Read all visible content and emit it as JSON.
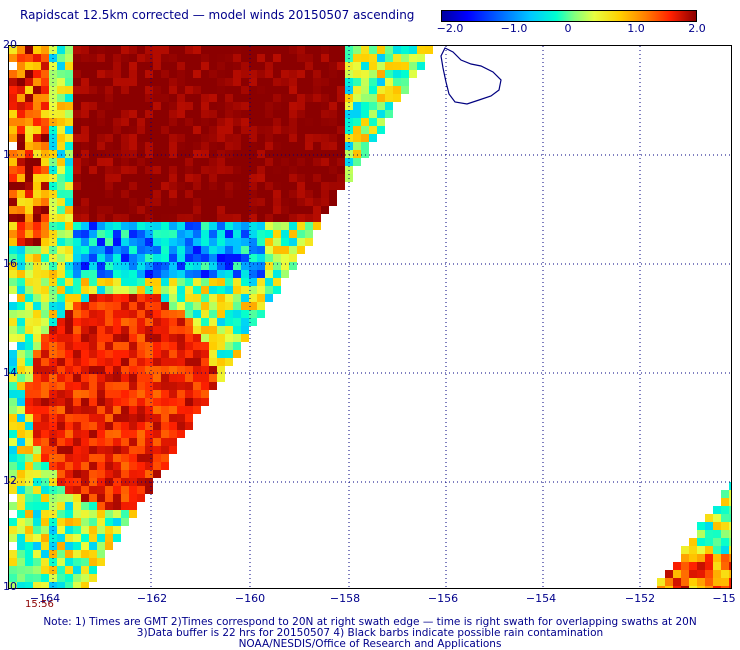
{
  "title": "Rapidscat 12.5km corrected — model winds 20150507 ascending",
  "colorbar": {
    "labels": [
      "−2.0",
      "−1.0",
      "0",
      "1.0",
      "2.0"
    ],
    "values": [
      -2.0,
      -1.0,
      0,
      1.0,
      2.0
    ],
    "min": -2.0,
    "max": 2.0,
    "colors": [
      "#0000a0",
      "#0000ff",
      "#00c8ff",
      "#80ff80",
      "#ffd000",
      "#ff2000",
      "#8b0000"
    ]
  },
  "axes": {
    "lon_ticks": [
      "−164",
      "−162",
      "−160",
      "−158",
      "−156",
      "−154",
      "−152",
      "−15"
    ],
    "lat_ticks": [
      "20",
      "1",
      "16",
      "14",
      "12",
      "10"
    ],
    "lon_range": [
      -165,
      -150
    ],
    "lat_range": [
      10,
      20
    ],
    "grid": "dotted"
  },
  "time_label": "15:56",
  "notes": [
    "Note: 1) Times are GMT 2)Times correspond to 20N at right swath edge — time is right swath for overlapping swaths at 20N",
    "3)Data buffer is 22 hrs for 20150507 4) Black barbs indicate possible rain contamination",
    "NOAA/NESDIS/Office of Research and Applications"
  ]
}
